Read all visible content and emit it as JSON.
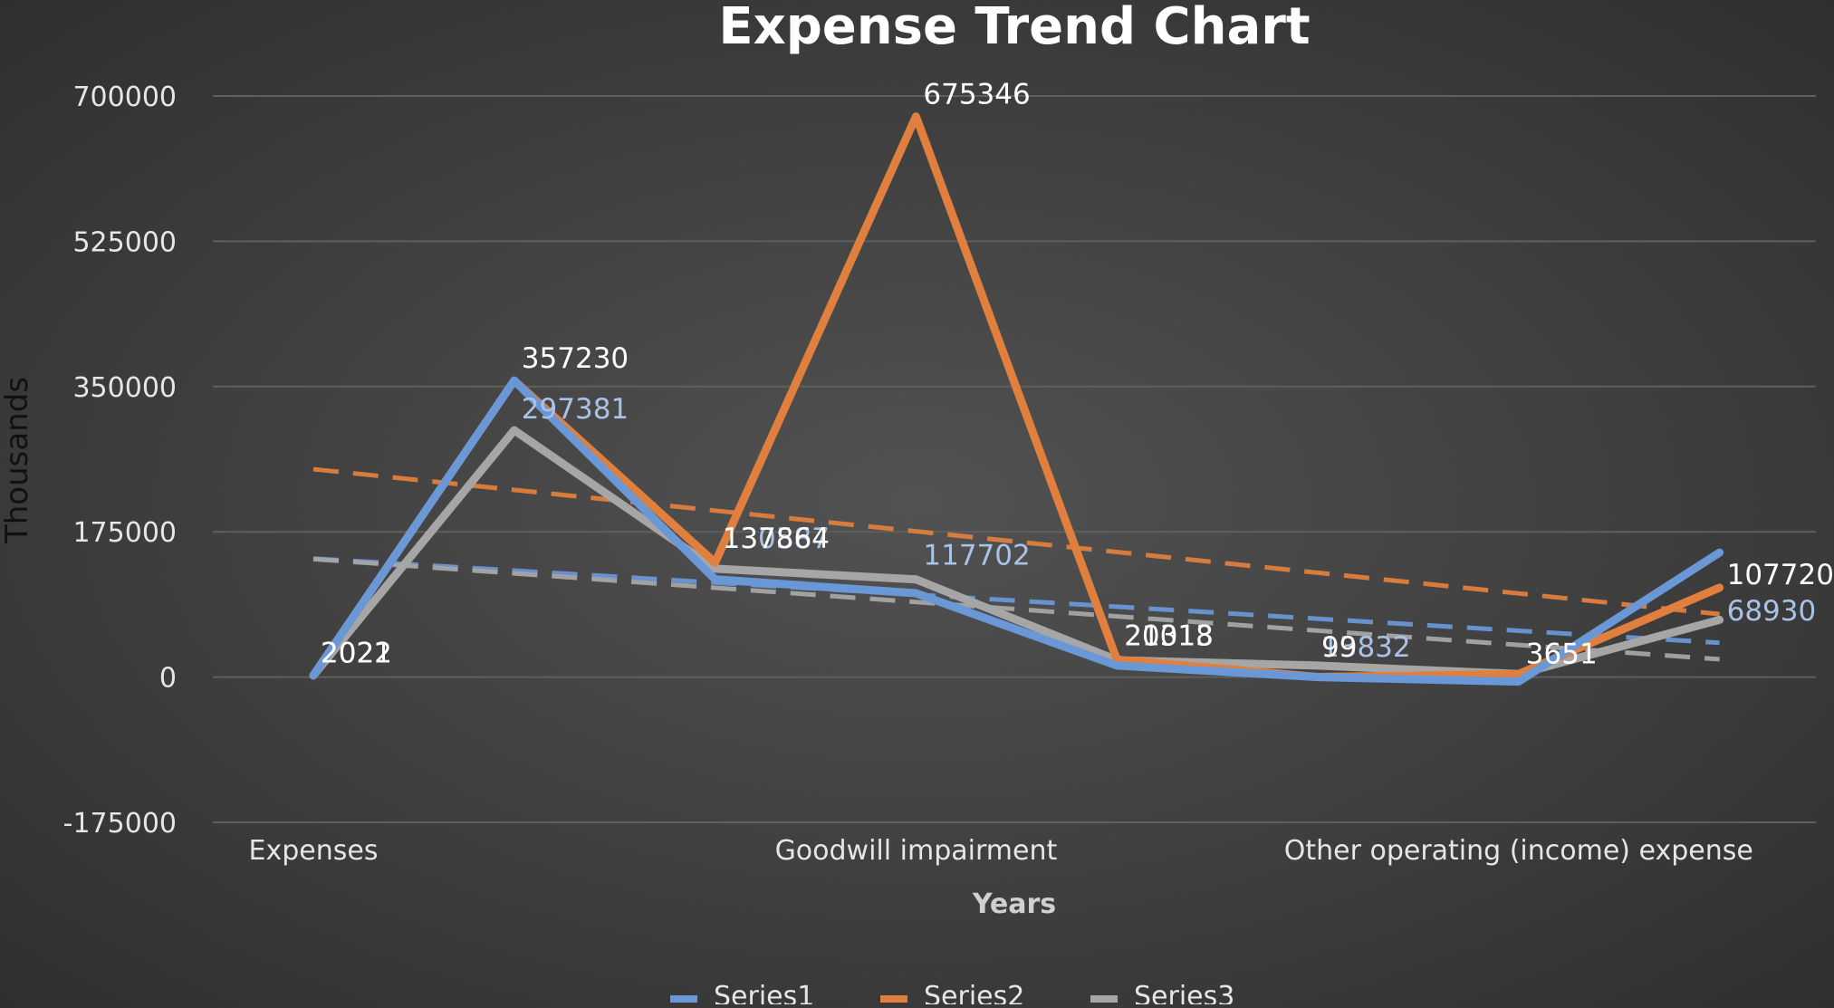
{
  "chart_data": {
    "type": "line",
    "title": "Expense Trend Chart",
    "xlabel": "Years",
    "ylabel": "Thousands",
    "ylim": [
      -175000,
      700000
    ],
    "yticks": [
      700000,
      525000,
      350000,
      175000,
      0,
      -175000
    ],
    "ytick_labels": [
      "700000",
      "525000",
      "350000",
      "175000",
      "0",
      "-175000"
    ],
    "categories": [
      "Expenses",
      "",
      "",
      "Goodwill impairment",
      "",
      "",
      "Other operating (income) expense",
      ""
    ],
    "grid": true,
    "legend_position": "bottom",
    "trendlines": true,
    "series": [
      {
        "name": "Series1",
        "color": "#6a97d6",
        "values": [
          2022,
          357230,
          117702,
          101000,
          13832,
          0,
          -5500,
          150000
        ]
      },
      {
        "name": "Series2",
        "color": "#e07f3e",
        "values": [
          2021,
          357230,
          137864,
          675346,
          21018,
          99,
          3651,
          107720
        ]
      },
      {
        "name": "Series3",
        "color": "#a6a6a6",
        "values": [
          2021,
          297381,
          130587,
          117702,
          20313,
          13832,
          3651,
          68930
        ]
      }
    ],
    "data_labels": [
      {
        "text": "2021",
        "series": 2,
        "point": 0,
        "color": "#ffffff"
      },
      {
        "text": "2022",
        "series": 0,
        "point": 0,
        "color": "#ffffff"
      },
      {
        "text": "357230",
        "series": 1,
        "point": 1,
        "color": "#ffffff"
      },
      {
        "text": "297381",
        "series": 2,
        "point": 1,
        "color": "#a9c2e6"
      },
      {
        "text": "130587",
        "series": 2,
        "point": 2,
        "color": "#a9c2e6"
      },
      {
        "text": "137864",
        "series": 1,
        "point": 2,
        "color": "#ffffff"
      },
      {
        "text": "675346",
        "series": 1,
        "point": 3,
        "color": "#ffffff"
      },
      {
        "text": "117702",
        "series": 2,
        "point": 3,
        "color": "#a9c2e6"
      },
      {
        "text": "20313",
        "series": 2,
        "point": 4,
        "color": "#ffffff"
      },
      {
        "text": "21018",
        "series": 1,
        "point": 4,
        "color": "#ffffff"
      },
      {
        "text": "13832",
        "series": 2,
        "point": 5,
        "color": "#a9c2e6"
      },
      {
        "text": "99",
        "series": 1,
        "point": 5,
        "color": "#ffffff"
      },
      {
        "text": "3651",
        "series": 1,
        "point": 6,
        "color": "#ffffff"
      },
      {
        "text": "107720",
        "series": 1,
        "point": 7,
        "color": "#ffffff"
      },
      {
        "text": "68930",
        "series": 2,
        "point": 7,
        "color": "#a9c2e6"
      }
    ]
  }
}
